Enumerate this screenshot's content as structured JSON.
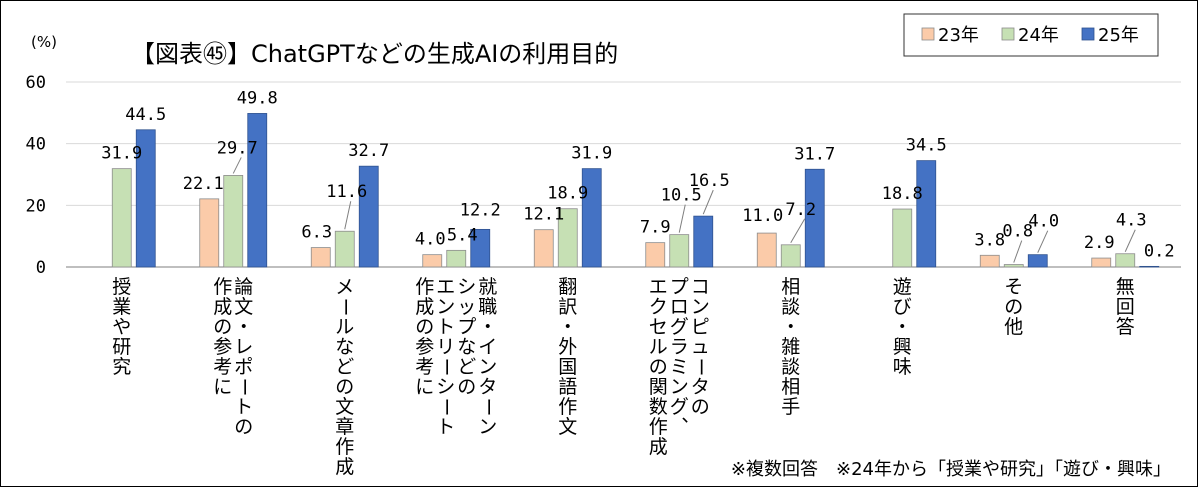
{
  "chart_data": {
    "type": "bar",
    "title": "【図表㊺】ChatGPTなどの生成AIの利用目的",
    "ylabel": "(%)",
    "ylim": [
      0,
      60
    ],
    "yticks": [
      "0",
      "20",
      "40",
      "60"
    ],
    "grid": true,
    "legend_position": "top-right",
    "categories": [
      [
        "授業や研究"
      ],
      [
        "論文・レポートの",
        "作成の参考に"
      ],
      [
        "メールなどの文章作成"
      ],
      [
        "就職・インターン",
        "シップなどの",
        "エントリーシート",
        "作成の参考に"
      ],
      [
        "翻訳・外国語作文"
      ],
      [
        "コンピュータの",
        "プログラミング、",
        "エクセルの関数作成"
      ],
      [
        "相談・雑談相手"
      ],
      [
        "遊び・興味"
      ],
      [
        "その他"
      ],
      [
        "無回答"
      ]
    ],
    "series": [
      {
        "name": "23年",
        "color": "#FBCBA9",
        "values": [
          null,
          22.1,
          6.3,
          4.0,
          12.1,
          7.9,
          11.0,
          null,
          3.8,
          2.9
        ],
        "labels": [
          "",
          "22.1",
          "6.3",
          "4.0",
          "12.1",
          "7.9",
          "11.0",
          "",
          "3.8",
          "2.9"
        ]
      },
      {
        "name": "24年",
        "color": "#C6E0B4",
        "values": [
          31.9,
          29.7,
          11.6,
          5.4,
          18.9,
          10.5,
          7.2,
          18.8,
          0.8,
          4.3
        ],
        "labels": [
          "31.9",
          "29.7",
          "11.6",
          "5.4",
          "18.9",
          "10.5",
          "7.2",
          "18.8",
          "0.8",
          "4.3"
        ]
      },
      {
        "name": "25年",
        "color": "#4472C4",
        "values": [
          44.5,
          49.8,
          32.7,
          12.2,
          31.9,
          16.5,
          31.7,
          34.5,
          4.0,
          0.2
        ],
        "labels": [
          "44.5",
          "49.8",
          "32.7",
          "12.2",
          "31.9",
          "16.5",
          "31.7",
          "34.5",
          "4.0",
          "0.2"
        ]
      }
    ]
  },
  "footnote": "※複数回答　※24年から「授業や研究」「遊び・興味」"
}
